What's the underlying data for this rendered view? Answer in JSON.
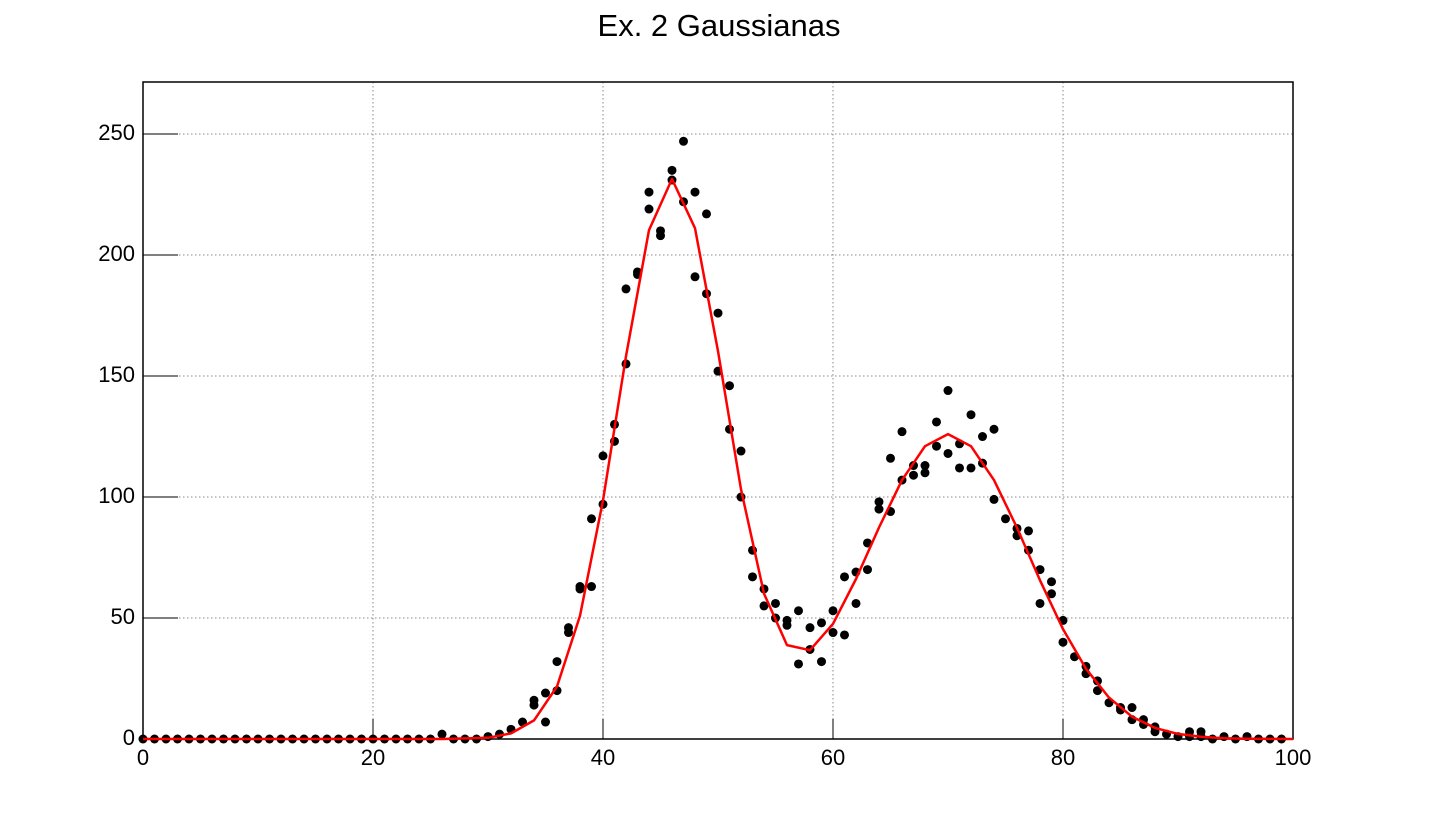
{
  "chart_data": {
    "type": "scatter",
    "title": "Ex. 2 Gaussianas",
    "xlim": [
      0,
      100
    ],
    "xticks": [
      0,
      20,
      40,
      60,
      80,
      100
    ],
    "ylim": [
      0,
      271.5
    ],
    "yticks": [
      0,
      50,
      100,
      150,
      200,
      250
    ],
    "grid": true,
    "series": [
      {
        "color": "#000000",
        "x": [
          0,
          1,
          2,
          3,
          4,
          5,
          6,
          7,
          8,
          9,
          10,
          11,
          12,
          13,
          14,
          15,
          16,
          17,
          18,
          19,
          20,
          21,
          22,
          23,
          24,
          25,
          26,
          27,
          28,
          29,
          30,
          31,
          32,
          33,
          34,
          34,
          35,
          35,
          36,
          36,
          37,
          37,
          38,
          38,
          39,
          39,
          40,
          40,
          41,
          41,
          42,
          42,
          43,
          43,
          44,
          44,
          45,
          45,
          46,
          46,
          47,
          47,
          48,
          48,
          49,
          49,
          50,
          50,
          51,
          51,
          52,
          52,
          53,
          53,
          54,
          54,
          55,
          55,
          56,
          56,
          57,
          57,
          58,
          58,
          59,
          59,
          60,
          60,
          61,
          61,
          62,
          62,
          63,
          63,
          64,
          64,
          65,
          65,
          66,
          66,
          67,
          67,
          68,
          68,
          69,
          69,
          70,
          70,
          71,
          71,
          72,
          72,
          73,
          73,
          74,
          74,
          75,
          76,
          76,
          77,
          77,
          78,
          78,
          79,
          79,
          80,
          80,
          81,
          82,
          82,
          83,
          83,
          84,
          85,
          85,
          86,
          86,
          87,
          87,
          88,
          88,
          89,
          90,
          91,
          91,
          92,
          92,
          93,
          94,
          95,
          96,
          97,
          98,
          99
        ],
        "values": [
          0,
          0,
          0,
          0,
          0,
          0,
          0,
          0,
          0,
          0,
          0,
          0,
          0,
          0,
          0,
          0,
          0,
          0,
          0,
          0,
          0,
          0,
          0,
          0,
          0,
          0,
          2,
          0,
          0,
          0,
          1,
          2,
          4,
          7,
          14,
          16,
          19,
          7,
          32,
          20,
          46,
          44,
          63,
          62,
          91,
          63,
          117,
          97,
          130,
          123,
          186,
          155,
          193,
          192,
          226,
          219,
          210,
          208,
          235,
          231,
          247,
          222,
          226,
          191,
          217,
          184,
          176,
          152,
          146,
          128,
          119,
          100,
          78,
          67,
          62,
          55,
          56,
          50,
          49,
          47,
          53,
          31,
          46,
          37,
          48,
          32,
          53,
          44,
          67,
          43,
          69,
          56,
          81,
          70,
          98,
          95,
          116,
          94,
          127,
          107,
          113,
          109,
          113,
          110,
          131,
          121,
          144,
          118,
          122,
          112,
          134,
          112,
          125,
          114,
          128,
          99,
          91,
          87,
          84,
          86,
          78,
          70,
          56,
          65,
          60,
          49,
          40,
          34,
          30,
          27,
          24,
          20,
          15,
          13,
          12,
          13,
          8,
          8,
          6,
          5,
          3,
          2,
          1,
          3,
          1,
          3,
          1,
          0,
          1,
          0,
          1,
          0,
          0,
          0
        ]
      }
    ],
    "fit": {
      "type": "line",
      "color": "#ff0000",
      "x": [
        0,
        20,
        26,
        30,
        32,
        34,
        36,
        38,
        40,
        42,
        44,
        46,
        48,
        50,
        52,
        54,
        56,
        58,
        60,
        62,
        64,
        66,
        68,
        70,
        72,
        74,
        76,
        78,
        80,
        82,
        84,
        86,
        88,
        90,
        92,
        94,
        96,
        100
      ],
      "values": [
        0,
        0,
        0,
        0.5,
        2.3,
        7.7,
        21.7,
        50.9,
        98.6,
        158.2,
        210.3,
        231.4,
        211.1,
        160.3,
        103.2,
        60.1,
        38.8,
        36.7,
        47.6,
        66.1,
        87.4,
        107.0,
        121.0,
        126,
        121.0,
        107.0,
        87.3,
        65.6,
        45.4,
        29.0,
        17.1,
        9.2,
        4.6,
        2.1,
        0.9,
        0.35,
        0.13,
        0
      ]
    }
  }
}
